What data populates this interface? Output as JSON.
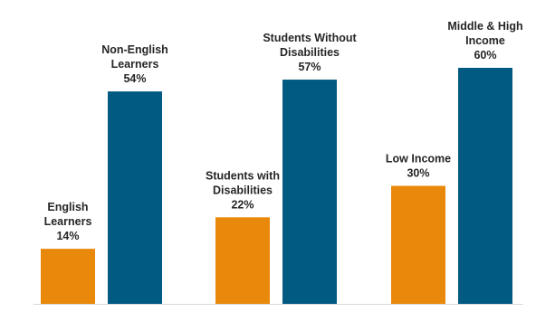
{
  "chart_data": {
    "type": "bar",
    "title": "",
    "xlabel": "",
    "ylabel": "",
    "ylim": [
      0,
      62
    ],
    "grid": false,
    "legend": "none",
    "colors": {
      "comparison_group": "#E8890C",
      "reference_group": "#005A82"
    },
    "groups": [
      {
        "bars": [
          {
            "label_lines": [
              "English",
              "Learners"
            ],
            "value": 14,
            "value_label": "14%",
            "color_role": "comparison_group"
          },
          {
            "label_lines": [
              "Non-English",
              "Learners"
            ],
            "value": 54,
            "value_label": "54%",
            "color_role": "reference_group"
          }
        ]
      },
      {
        "bars": [
          {
            "label_lines": [
              "Students with",
              "Disabilities"
            ],
            "value": 22,
            "value_label": "22%",
            "color_role": "comparison_group"
          },
          {
            "label_lines": [
              "Students Without",
              "Disabilities"
            ],
            "value": 57,
            "value_label": "57%",
            "color_role": "reference_group"
          }
        ]
      },
      {
        "bars": [
          {
            "label_lines": [
              "Low Income"
            ],
            "value": 30,
            "value_label": "30%",
            "color_role": "comparison_group"
          },
          {
            "label_lines": [
              "Middle & High",
              "Income"
            ],
            "value": 60,
            "value_label": "60%",
            "color_role": "reference_group"
          }
        ]
      }
    ]
  }
}
